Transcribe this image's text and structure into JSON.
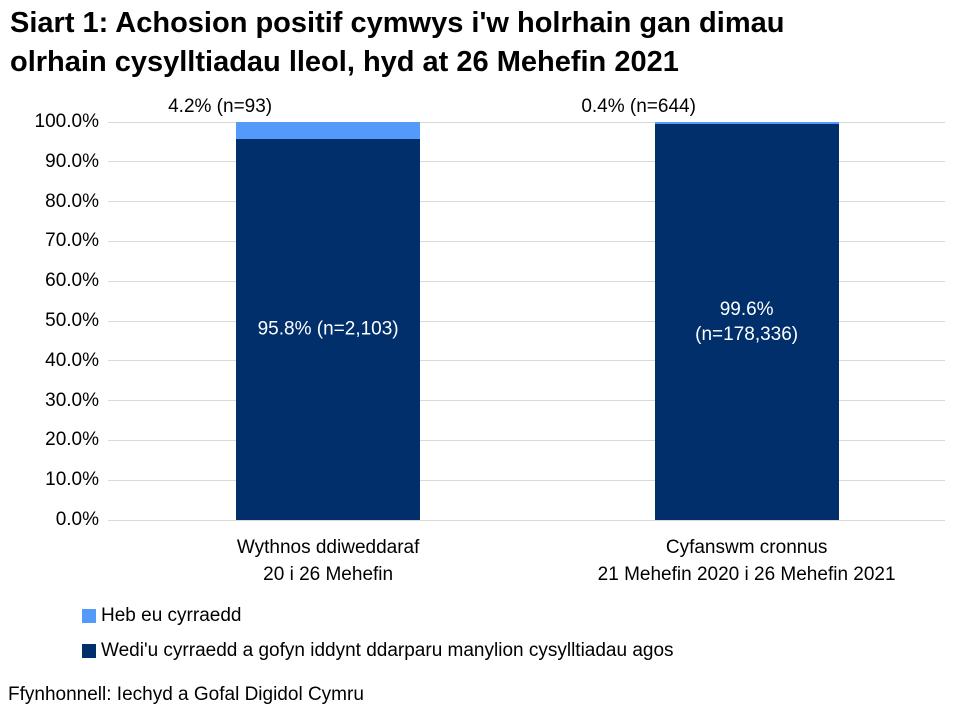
{
  "title": "Siart 1: Achosion positif cymwys i'w holrhain gan dimau\nolrhain cysylltiadau lleol, hyd at 26 Mehefin 2021",
  "source": "Ffynhonnell: Iechyd a Gofal Digidol Cymru",
  "colors": {
    "not_reached": "#549AF8",
    "reached": "#002F6B",
    "gridline": "#d9d9d9",
    "background": "#ffffff",
    "text": "#000000",
    "bar_inner_label": "#ffffff"
  },
  "legend": [
    {
      "label": "Heb eu cyrraedd",
      "color": "#549AF8"
    },
    {
      "label": "Wedi'u cyrraedd a gofyn iddynt ddarparu manylion cysylltiadau agos",
      "color": "#002F6B"
    }
  ],
  "chart_data": {
    "type": "bar",
    "stacked": true,
    "title": "Siart 1: Achosion positif cymwys i'w holrhain gan dimau olrhain cysylltiadau lleol, hyd at 26 Mehefin 2021",
    "categories": [
      "Wythnos ddiweddaraf\n20 i 26 Mehefin",
      "Cyfanswm cronnus\n21 Mehefin 2020 i 26 Mehefin 2021"
    ],
    "series": [
      {
        "name": "Wedi'u cyrraedd a gofyn iddynt ddarparu manylion cysylltiadau agos",
        "values": [
          95.8,
          99.6
        ],
        "counts": [
          2103,
          178336
        ],
        "color": "#002F6B",
        "labels": [
          "95.8% (n=2,103)",
          "99.6%\n(n=178,336)"
        ],
        "label_placement": "inside-center",
        "label_color": "#ffffff"
      },
      {
        "name": "Heb eu cyrraedd",
        "values": [
          4.2,
          0.4
        ],
        "counts": [
          93,
          644
        ],
        "color": "#549AF8",
        "labels": [
          "4.2% (n=93)",
          "0.4% (n=644)"
        ],
        "label_placement": "above-bar",
        "label_color": "#000000"
      }
    ],
    "ylabel": "",
    "xlabel": "",
    "ylim": [
      0,
      100
    ],
    "ytick_step": 10,
    "ytick_labels": [
      "0.0%",
      "10.0%",
      "20.0%",
      "30.0%",
      "40.0%",
      "50.0%",
      "60.0%",
      "70.0%",
      "80.0%",
      "90.0%",
      "100.0%"
    ],
    "grid": true,
    "legend_position": "bottom-left"
  }
}
